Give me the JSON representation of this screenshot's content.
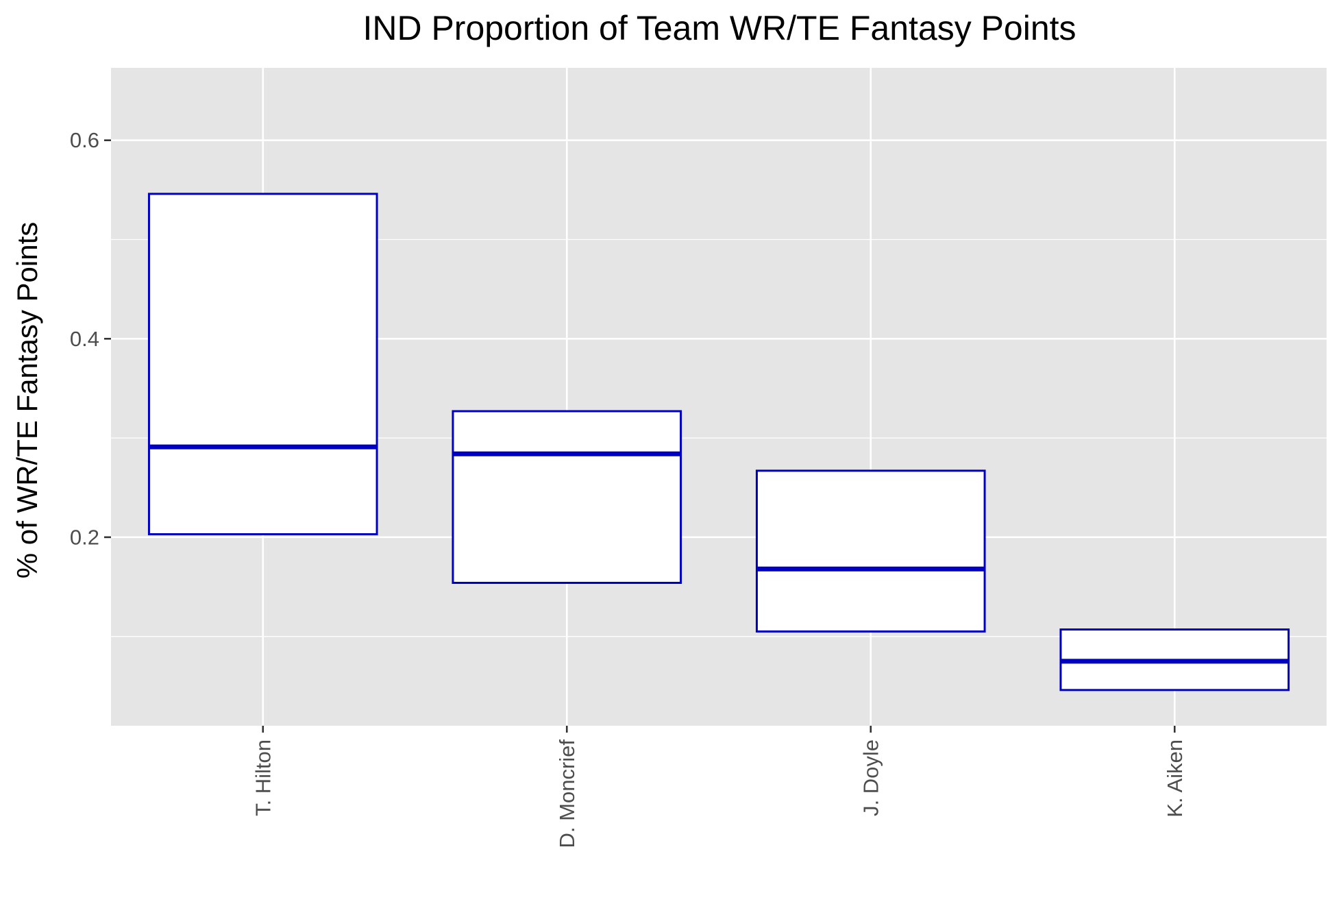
{
  "chart_data": {
    "type": "boxplot",
    "title": "IND Proportion of Team WR/TE Fantasy Points",
    "xlabel": "",
    "ylabel": "% of WR/TE Fantasy Points",
    "categories": [
      "T. Hilton",
      "D. Moncrief",
      "J. Doyle",
      "K. Aiken"
    ],
    "boxes": [
      {
        "category": "T. Hilton",
        "q1": 0.203,
        "median": 0.291,
        "q3": 0.546
      },
      {
        "category": "D. Moncrief",
        "q1": 0.154,
        "median": 0.284,
        "q3": 0.327
      },
      {
        "category": "J. Doyle",
        "q1": 0.105,
        "median": 0.168,
        "q3": 0.267
      },
      {
        "category": "K. Aiken",
        "q1": 0.046,
        "median": 0.075,
        "q3": 0.107
      }
    ],
    "yticks": [
      0.2,
      0.4,
      0.6
    ],
    "ytick_labels": [
      "0.2",
      "0.4",
      "0.6"
    ],
    "ylim": [
      0.01,
      0.673
    ],
    "grid": true,
    "colors": {
      "box_stroke": "#0000C0",
      "box_fill": "#FFFFFF",
      "panel": "#E5E5E5",
      "grid": "#FFFFFF"
    }
  }
}
